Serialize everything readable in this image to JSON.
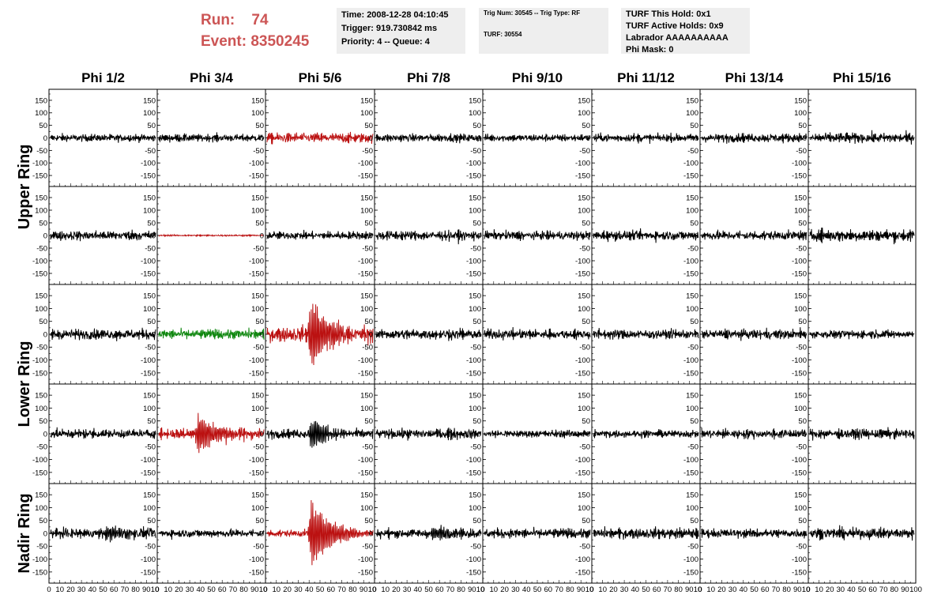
{
  "header": {
    "run_label": "Run:",
    "run_value": "74",
    "event_label": "Event:",
    "event_value": "8350245",
    "run_color": "#cc5555"
  },
  "info_time": {
    "time": "Time: 2008-12-28 04:10:45",
    "trigger": "Trigger: 919.730842 ms",
    "priority": "Priority: 4 -- Queue: 4"
  },
  "info_trig": {
    "trig": "Trig Num: 30545 -- Trig Type: RF",
    "turf": "TURF: 30554"
  },
  "info_turf": {
    "hold": "TURF This Hold: 0x1",
    "active": "TURF Active Holds: 0x9",
    "labrador": "Labrador AAAAAAAAAA",
    "phimask": "Phi Mask: 0"
  },
  "chart_data": {
    "type": "line",
    "columns": [
      "Phi 1/2",
      "Phi 3/4",
      "Phi 5/6",
      "Phi 7/8",
      "Phi 9/10",
      "Phi 11/12",
      "Phi 13/14",
      "Phi 15/16"
    ],
    "ring_labels": [
      {
        "text": "Upper Ring",
        "rows": [
          0,
          1
        ]
      },
      {
        "text": "Lower Ring",
        "rows": [
          2,
          3
        ]
      },
      {
        "text": "Nadir Ring",
        "rows": [
          4
        ]
      }
    ],
    "xlim": [
      0,
      100
    ],
    "ylim": [
      -175,
      175
    ],
    "yticks": [
      -150,
      -100,
      -50,
      0,
      50,
      100,
      150
    ],
    "xticks": [
      0,
      10,
      20,
      30,
      40,
      50,
      60,
      70,
      80,
      90,
      100
    ],
    "xtick_text": "0 10 20 30 40 50 60 70 80 90 10",
    "last_xtick_text": "0 10 20 30 40 50 60 70 80 90 100",
    "colors": {
      "normal": "#000000",
      "triggered": "#bb1111",
      "hold": "#118811"
    },
    "channels": [
      [
        {
          "color": "normal",
          "amp": 10,
          "burst": 0
        },
        {
          "color": "normal",
          "amp": 10,
          "burst": 0
        },
        {
          "color": "triggered",
          "amp": 14,
          "burst": 0
        },
        {
          "color": "normal",
          "amp": 11,
          "burst": 0
        },
        {
          "color": "normal",
          "amp": 10,
          "burst": 0
        },
        {
          "color": "normal",
          "amp": 11,
          "burst": 0
        },
        {
          "color": "normal",
          "amp": 12,
          "burst": 0
        },
        {
          "color": "normal",
          "amp": 14,
          "burst": 0
        }
      ],
      [
        {
          "color": "normal",
          "amp": 13,
          "burst": 0
        },
        {
          "color": "triggered",
          "amp": 2,
          "burst": 0
        },
        {
          "color": "normal",
          "amp": 11,
          "burst": 0
        },
        {
          "color": "normal",
          "amp": 13,
          "burst": 0
        },
        {
          "color": "normal",
          "amp": 12,
          "burst": 0
        },
        {
          "color": "normal",
          "amp": 13,
          "burst": 0
        },
        {
          "color": "normal",
          "amp": 13,
          "burst": 0
        },
        {
          "color": "normal",
          "amp": 16,
          "burst": 0
        }
      ],
      [
        {
          "color": "normal",
          "amp": 14,
          "burst": 0
        },
        {
          "color": "hold",
          "amp": 13,
          "burst": 0
        },
        {
          "color": "triggered",
          "amp": 20,
          "burst": 150
        },
        {
          "color": "normal",
          "amp": 14,
          "burst": 0
        },
        {
          "color": "normal",
          "amp": 13,
          "burst": 0
        },
        {
          "color": "normal",
          "amp": 13,
          "burst": 0
        },
        {
          "color": "normal",
          "amp": 13,
          "burst": 0
        },
        {
          "color": "normal",
          "amp": 11,
          "burst": 0
        }
      ],
      [
        {
          "color": "normal",
          "amp": 12,
          "burst": 0
        },
        {
          "color": "triggered",
          "amp": 14,
          "burst": 90
        },
        {
          "color": "normal",
          "amp": 12,
          "burst": 65
        },
        {
          "color": "normal",
          "amp": 13,
          "burst": 0
        },
        {
          "color": "normal",
          "amp": 10,
          "burst": 0
        },
        {
          "color": "normal",
          "amp": 10,
          "burst": 0
        },
        {
          "color": "normal",
          "amp": 12,
          "burst": 0
        },
        {
          "color": "normal",
          "amp": 13,
          "burst": 0
        }
      ],
      [
        {
          "color": "normal",
          "amp": 13,
          "burst": 30
        },
        {
          "color": "normal",
          "amp": 11,
          "burst": 0
        },
        {
          "color": "triggered",
          "amp": 10,
          "burst": 150
        },
        {
          "color": "normal",
          "amp": 12,
          "burst": 30
        },
        {
          "color": "normal",
          "amp": 13,
          "burst": 0
        },
        {
          "color": "normal",
          "amp": 14,
          "burst": 0
        },
        {
          "color": "normal",
          "amp": 12,
          "burst": 0
        },
        {
          "color": "normal",
          "amp": 14,
          "burst": 0
        }
      ]
    ]
  }
}
